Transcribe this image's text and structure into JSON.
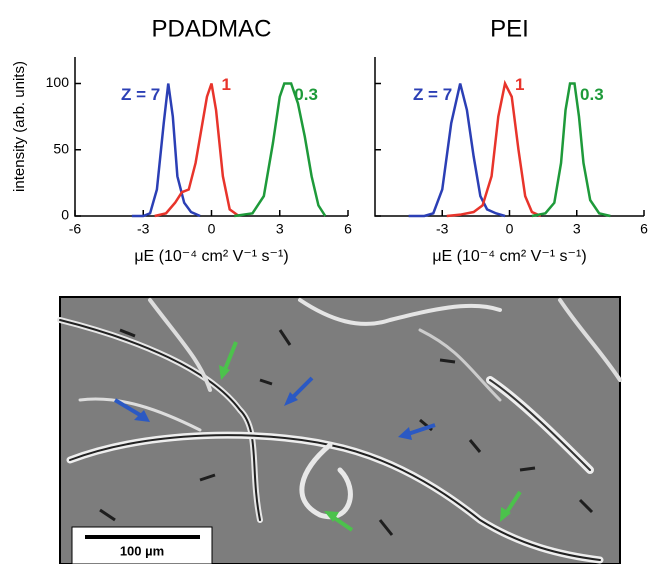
{
  "chart_data": [
    {
      "type": "line",
      "title": "PDADMAC",
      "x_label": "μE (10⁻⁴ cm² V⁻¹ s⁻¹)",
      "y_label": "intensity (arb. units)",
      "xlim": [
        -6,
        6
      ],
      "xticks": [
        -6,
        -3,
        0,
        3,
        6
      ],
      "ylim": [
        0,
        120
      ],
      "yticks": [
        0,
        50,
        100
      ],
      "show_ytick_labels": true,
      "series": [
        {
          "name": "Z = 7",
          "color": "#2b3fb5",
          "x": [
            -3.5,
            -3,
            -2.7,
            -2.4,
            -2.1,
            -1.9,
            -1.7,
            -1.5,
            -1.2,
            -0.9,
            -0.5
          ],
          "values": [
            0,
            0,
            2,
            20,
            70,
            100,
            75,
            30,
            10,
            3,
            0
          ]
        },
        {
          "name": "1",
          "color": "#e8342b",
          "x": [
            -2.5,
            -2,
            -1.6,
            -1.3,
            -1,
            -0.7,
            -0.4,
            -0.2,
            0,
            0.2,
            0.5,
            0.8,
            1.2
          ],
          "values": [
            0,
            2,
            10,
            18,
            20,
            40,
            70,
            90,
            100,
            80,
            30,
            5,
            0
          ]
        },
        {
          "name": "0.3",
          "color": "#1e9a3a",
          "x": [
            1,
            1.8,
            2.3,
            2.7,
            3,
            3.2,
            3.5,
            3.8,
            4.1,
            4.4,
            4.7,
            5
          ],
          "values": [
            0,
            2,
            15,
            55,
            90,
            100,
            100,
            85,
            60,
            30,
            8,
            0
          ]
        }
      ]
    },
    {
      "type": "line",
      "title": "PEI",
      "x_label": "μE (10⁻⁴ cm² V⁻¹ s⁻¹)",
      "xlim": [
        -6,
        6
      ],
      "xticks": [
        -3,
        0,
        3,
        6
      ],
      "ylim": [
        0,
        120
      ],
      "yticks": [
        0,
        50,
        100
      ],
      "show_ytick_labels": false,
      "series": [
        {
          "name": "Z = 7",
          "color": "#2b3fb5",
          "x": [
            -4.5,
            -3.8,
            -3.4,
            -3,
            -2.6,
            -2.2,
            -1.9,
            -1.6,
            -1.3,
            -1,
            -0.6,
            -0.2
          ],
          "values": [
            0,
            0,
            2,
            20,
            70,
            100,
            80,
            45,
            15,
            5,
            2,
            0
          ]
        },
        {
          "name": "1",
          "color": "#e8342b",
          "x": [
            -2.8,
            -2.2,
            -1.6,
            -1.2,
            -0.8,
            -0.5,
            -0.2,
            0.1,
            0.4,
            0.7,
            1,
            1.4
          ],
          "values": [
            0,
            1,
            3,
            8,
            30,
            75,
            100,
            90,
            50,
            15,
            3,
            0
          ]
        },
        {
          "name": "0.3",
          "color": "#1e9a3a",
          "x": [
            1,
            1.6,
            2,
            2.3,
            2.5,
            2.7,
            2.9,
            3.1,
            3.3,
            3.6,
            4,
            4.5
          ],
          "values": [
            0,
            2,
            10,
            40,
            80,
            100,
            100,
            75,
            40,
            12,
            2,
            0
          ]
        }
      ]
    }
  ],
  "image": {
    "scale_bar": "100 µm"
  }
}
